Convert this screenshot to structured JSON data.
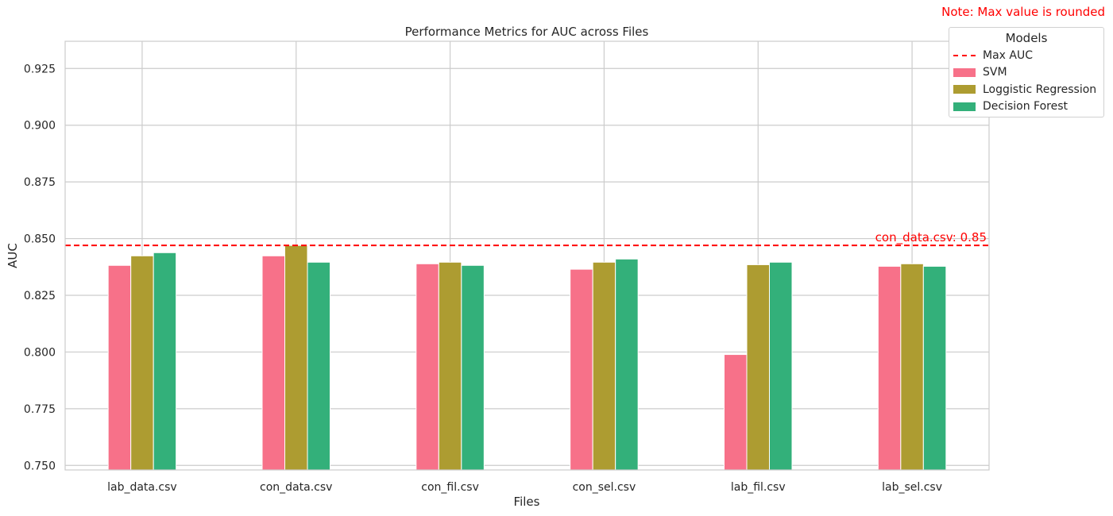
{
  "chart_data": {
    "type": "bar",
    "title": "Performance Metrics for AUC across Files",
    "xlabel": "Files",
    "ylabel": "AUC",
    "ylim": [
      0.748,
      0.937
    ],
    "yticks": [
      "0.750",
      "0.775",
      "0.800",
      "0.825",
      "0.850",
      "0.875",
      "0.900",
      "0.925"
    ],
    "grid": true,
    "legend_position": "top-right",
    "legend_title": "Models",
    "categories": [
      "lab_data.csv",
      "con_data.csv",
      "con_fil.csv",
      "con_sel.csv",
      "lab_fil.csv",
      "lab_sel.csv"
    ],
    "series": [
      {
        "name": "SVM",
        "color": "#f77189",
        "values": [
          0.8382,
          0.8424,
          0.8389,
          0.8365,
          0.7989,
          0.8378
        ]
      },
      {
        "name": "Loggistic Regression",
        "color": "#ad9c31",
        "values": [
          0.8424,
          0.847,
          0.8396,
          0.8396,
          0.8385,
          0.8389
        ]
      },
      {
        "name": "Decision Forest",
        "color": "#33b07a",
        "values": [
          0.8438,
          0.8396,
          0.8382,
          0.841,
          0.8396,
          0.8378
        ]
      }
    ],
    "reference_line": {
      "name": "Max AUC",
      "value": 0.847,
      "color": "#ff0000",
      "annotation": "con_data.csv: 0.85"
    },
    "note": "Note: Max value is rounded"
  }
}
